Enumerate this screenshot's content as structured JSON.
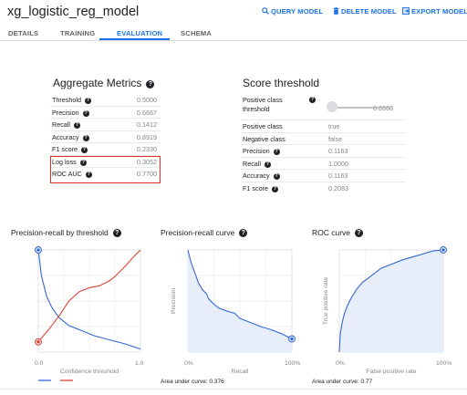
{
  "header": {
    "title": "xg_logistic_reg_model",
    "query_label": "QUERY MODEL",
    "delete_label": "DELETE MODEL",
    "export_label": "EXPORT MODEL"
  },
  "tabs": [
    {
      "label": "DETAILS",
      "active": false
    },
    {
      "label": "TRAINING",
      "active": false
    },
    {
      "label": "EVALUATION",
      "active": true
    },
    {
      "label": "SCHEMA",
      "active": false
    }
  ],
  "aggregate": {
    "title": "Aggregate Metrics",
    "rows": [
      {
        "label": "Threshold",
        "value": "0.5000"
      },
      {
        "label": "Precision",
        "value": "0.6667"
      },
      {
        "label": "Recall",
        "value": "0.1412"
      },
      {
        "label": "Accuracy",
        "value": "0.8919"
      },
      {
        "label": "F1 score",
        "value": "0.2330"
      },
      {
        "label": "Log loss",
        "value": "0.3052"
      },
      {
        "label": "ROC AUC",
        "value": "0.7700"
      }
    ]
  },
  "score_threshold": {
    "title": "Score threshold",
    "positive_class_threshold_label_line1": "Positive class",
    "positive_class_threshold_label_line2": "threshold",
    "slider_value": "0.0008",
    "rows": [
      {
        "label": "Positive class",
        "value": "true"
      },
      {
        "label": "Negative class",
        "value": "false"
      },
      {
        "label": "Precision",
        "value": "0.1163"
      },
      {
        "label": "Recall",
        "value": "1.0000"
      },
      {
        "label": "Accuracy",
        "value": "0.1163"
      },
      {
        "label": "F1 score",
        "value": "0.2083"
      }
    ]
  },
  "chart_data": [
    {
      "type": "line",
      "title": "Precision-recall by threshold",
      "xlabel": "Confidence threshold",
      "xlim": [
        0,
        1
      ],
      "ylim": [
        0,
        1
      ],
      "x_ticks": [
        "0.0",
        "1.0"
      ],
      "series": [
        {
          "color": "#3367d6",
          "points": [
            [
              0,
              1
            ],
            [
              0.03,
              0.75
            ],
            [
              0.08,
              0.55
            ],
            [
              0.13,
              0.44
            ],
            [
              0.2,
              0.34
            ],
            [
              0.3,
              0.26
            ],
            [
              0.4,
              0.22
            ],
            [
              0.55,
              0.16
            ],
            [
              0.7,
              0.12
            ],
            [
              0.85,
              0.08
            ],
            [
              1,
              0.03
            ]
          ]
        },
        {
          "color": "#db4437",
          "points": [
            [
              0,
              0.1
            ],
            [
              0.1,
              0.22
            ],
            [
              0.2,
              0.35
            ],
            [
              0.3,
              0.5
            ],
            [
              0.4,
              0.59
            ],
            [
              0.5,
              0.63
            ],
            [
              0.6,
              0.65
            ],
            [
              0.7,
              0.7
            ],
            [
              0.75,
              0.74
            ],
            [
              0.85,
              0.84
            ],
            [
              0.93,
              0.93
            ],
            [
              1,
              1
            ]
          ]
        }
      ],
      "highlight_points": [
        [
          0,
          1
        ],
        [
          0,
          0.1
        ]
      ]
    },
    {
      "type": "area",
      "title": "Precision-recall curve",
      "xlabel": "Recall",
      "ylabel": "Precision",
      "xlim": [
        0,
        100
      ],
      "ylim": [
        0,
        1
      ],
      "x_ticks": [
        "0%",
        "100%"
      ],
      "area_under_curve_label": "Area under curve: 0.376",
      "points": [
        [
          0,
          1
        ],
        [
          3,
          0.88
        ],
        [
          8,
          0.74
        ],
        [
          10,
          0.68
        ],
        [
          14,
          0.61
        ],
        [
          18,
          0.57
        ],
        [
          20,
          0.52
        ],
        [
          25,
          0.47
        ],
        [
          30,
          0.43
        ],
        [
          38,
          0.4
        ],
        [
          45,
          0.38
        ],
        [
          50,
          0.33
        ],
        [
          60,
          0.29
        ],
        [
          70,
          0.25
        ],
        [
          80,
          0.22
        ],
        [
          90,
          0.18
        ],
        [
          96,
          0.15
        ],
        [
          100,
          0.13
        ]
      ],
      "highlight_points": [
        [
          100,
          0.13
        ]
      ]
    },
    {
      "type": "area",
      "title": "ROC curve",
      "xlabel": "False positive rate",
      "ylabel": "True positive rate",
      "xlim": [
        0,
        100
      ],
      "ylim": [
        0,
        1
      ],
      "x_ticks": [
        "0%",
        "100%"
      ],
      "area_under_curve_label": "Area under curve: 0.77",
      "points": [
        [
          0,
          0
        ],
        [
          1,
          0.18
        ],
        [
          3,
          0.3
        ],
        [
          5,
          0.38
        ],
        [
          8,
          0.46
        ],
        [
          12,
          0.54
        ],
        [
          17,
          0.62
        ],
        [
          22,
          0.68
        ],
        [
          30,
          0.74
        ],
        [
          40,
          0.82
        ],
        [
          50,
          0.86
        ],
        [
          60,
          0.9
        ],
        [
          70,
          0.93
        ],
        [
          80,
          0.96
        ],
        [
          90,
          0.99
        ],
        [
          100,
          1
        ]
      ],
      "highlight_points": [
        [
          100,
          1
        ]
      ]
    }
  ],
  "colors": {
    "accent": "#1a73e8",
    "highlight_border": "#d93025",
    "series_blue": "#3367d6",
    "series_red": "#db4437",
    "area_fill": "#e8eef9"
  }
}
